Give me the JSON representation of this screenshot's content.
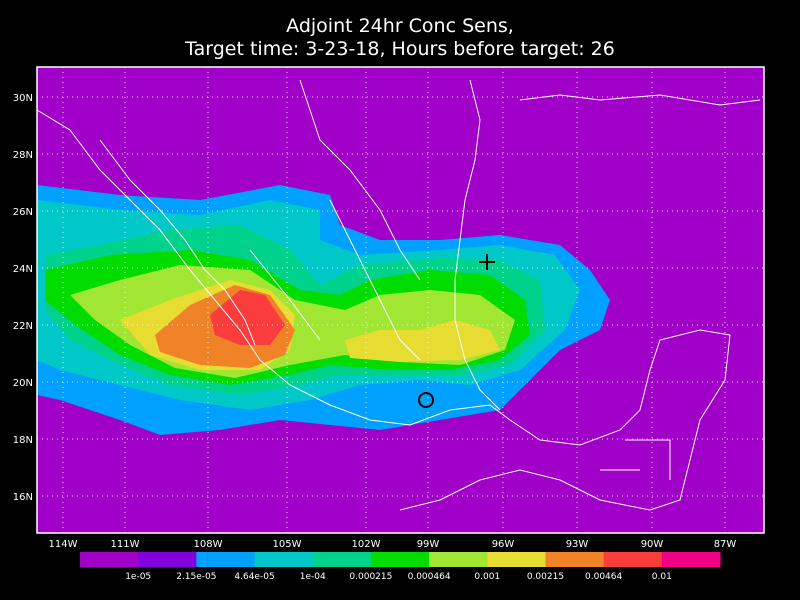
{
  "title": [
    "Adjoint 24hr Conc Sens,",
    "Target time: 3-23-18, Hours before target: 26"
  ],
  "lat_labels": [
    "30N",
    "28N",
    "26N",
    "24N",
    "22N",
    "20N",
    "18N",
    "16N"
  ],
  "lon_labels": [
    "114W",
    "111W",
    "108W",
    "105W",
    "102W",
    "99W",
    "96W",
    "93W",
    "90W",
    "87W"
  ],
  "colorbar": {
    "colors": [
      "#a000c8",
      "#8200dc",
      "#00a0ff",
      "#00c8c8",
      "#00d28c",
      "#00dc00",
      "#a0e632",
      "#e6dc32",
      "#f08228",
      "#fa3c3c",
      "#f00082"
    ],
    "labels": [
      "1e-05",
      "2.15e-05",
      "4.64e-05",
      "1e-04",
      "0.000215",
      "0.000464",
      "0.001",
      "0.00215",
      "0.00464",
      "0.01"
    ]
  }
}
